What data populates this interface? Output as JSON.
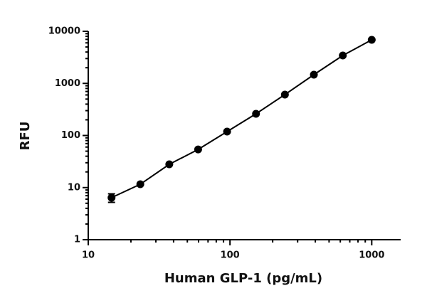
{
  "chart_data": {
    "type": "scatter",
    "x_label": "Human GLP-1 (pg/mL)",
    "y_label": "RFU",
    "x": [
      14.6,
      23.3,
      37.3,
      59.6,
      95.4,
      152.6,
      244,
      390.6,
      625,
      1000
    ],
    "values": [
      6.4,
      11.6,
      28,
      54,
      119,
      261,
      609,
      1469,
      3435,
      6858
    ],
    "errors": [
      1.2,
      null,
      null,
      null,
      null,
      null,
      null,
      null,
      null,
      null
    ],
    "color": "#000000",
    "xlim": [
      10,
      1600
    ],
    "xticks": [
      10,
      100,
      1000
    ],
    "ylim": [
      1,
      10000
    ],
    "yticks": [
      1,
      10,
      100,
      1000,
      10000
    ],
    "xlog": true,
    "ylog": true,
    "minor_ticks": true
  }
}
